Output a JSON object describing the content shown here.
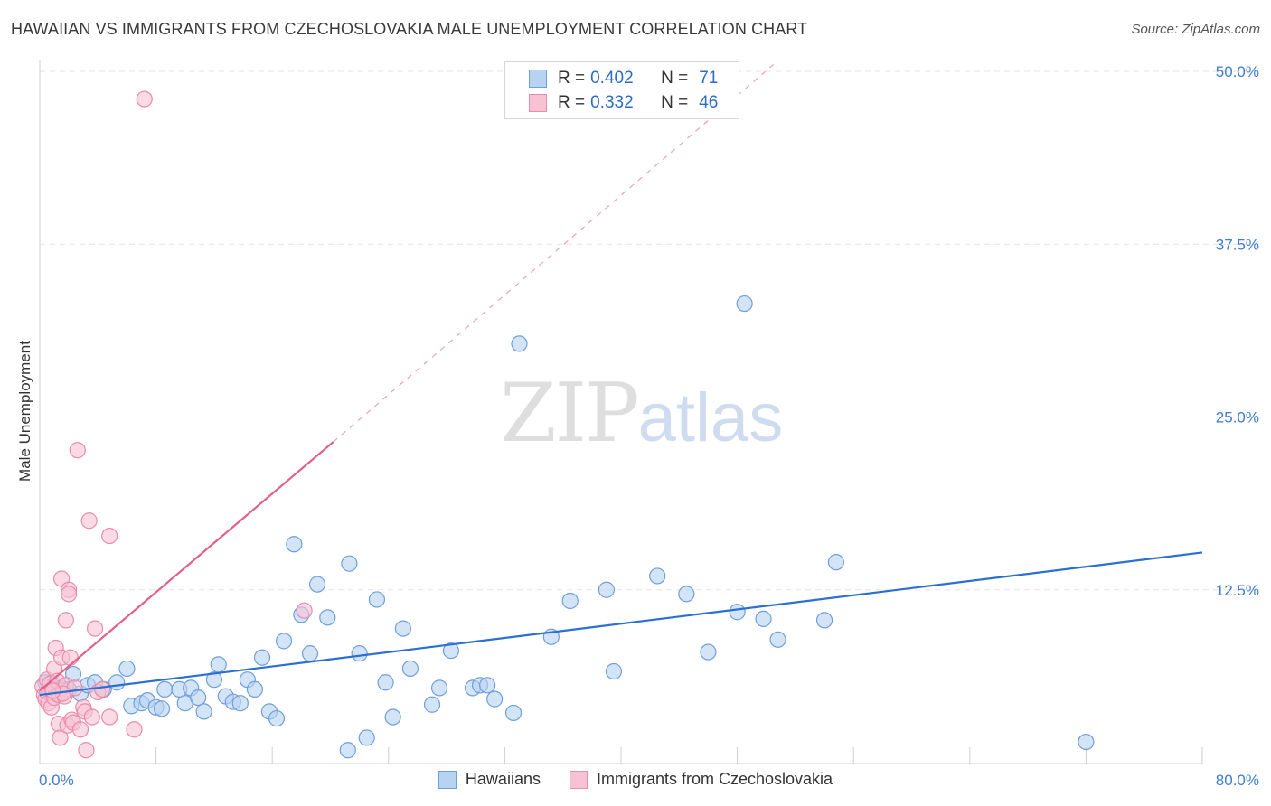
{
  "title": "HAWAIIAN VS IMMIGRANTS FROM CZECHOSLOVAKIA MALE UNEMPLOYMENT CORRELATION CHART",
  "source": "Source: ZipAtlas.com",
  "watermark": {
    "zip": "ZIP",
    "atlas": "atlas"
  },
  "legend": {
    "r_label": "R =",
    "n_label": "N =",
    "rows": [
      {
        "r": "0.402",
        "n": "71"
      },
      {
        "r": "0.332",
        "n": "46"
      }
    ]
  },
  "colors": {
    "blue_fill": "#b8d2f2",
    "blue_stroke": "#6f9fd8",
    "blue_line": "#2a6fd1",
    "pink_fill": "#f7c3d4",
    "pink_stroke": "#e98bab",
    "pink_line": "#e0608a",
    "axis_text": "#3f7bd0",
    "grid": "#e3e3e3"
  },
  "chart_data": {
    "type": "scatter",
    "title": "HAWAIIAN VS IMMIGRANTS FROM CZECHOSLOVAKIA MALE UNEMPLOYMENT CORRELATION CHART",
    "xlabel": "",
    "ylabel": "Male Unemployment",
    "xlim": [
      0,
      80
    ],
    "ylim": [
      0,
      50
    ],
    "x_tick_labels": [
      "0.0%",
      "80.0%"
    ],
    "y_ticks": [
      12.5,
      25.0,
      37.5,
      50.0
    ],
    "y_tick_labels": [
      "12.5%",
      "25.0%",
      "37.5%",
      "50.0%"
    ],
    "grid": true,
    "series": [
      {
        "name": "Hawaiians",
        "r": 0.402,
        "n": 71,
        "trend": {
          "x": [
            0,
            80
          ],
          "y": [
            4.9,
            15.2
          ]
        },
        "points": [
          [
            0.4,
            5.8
          ],
          [
            0.6,
            5.2
          ],
          [
            1.0,
            5.6
          ],
          [
            1.5,
            5.4
          ],
          [
            2.0,
            5.3
          ],
          [
            2.3,
            6.4
          ],
          [
            2.8,
            5.0
          ],
          [
            3.3,
            5.6
          ],
          [
            3.8,
            5.8
          ],
          [
            4.4,
            5.3
          ],
          [
            5.3,
            5.8
          ],
          [
            6.0,
            6.8
          ],
          [
            6.3,
            4.1
          ],
          [
            7.0,
            4.3
          ],
          [
            7.4,
            4.5
          ],
          [
            8.0,
            4.0
          ],
          [
            8.4,
            3.9
          ],
          [
            8.6,
            5.3
          ],
          [
            9.6,
            5.3
          ],
          [
            10.0,
            4.3
          ],
          [
            10.4,
            5.4
          ],
          [
            10.9,
            4.7
          ],
          [
            11.3,
            3.7
          ],
          [
            12.0,
            6.0
          ],
          [
            12.3,
            7.1
          ],
          [
            12.8,
            4.8
          ],
          [
            13.3,
            4.4
          ],
          [
            13.8,
            4.3
          ],
          [
            14.3,
            6.0
          ],
          [
            14.8,
            5.3
          ],
          [
            15.3,
            7.6
          ],
          [
            15.8,
            3.7
          ],
          [
            16.3,
            3.2
          ],
          [
            16.8,
            8.8
          ],
          [
            17.5,
            15.8
          ],
          [
            18.0,
            10.7
          ],
          [
            18.6,
            7.9
          ],
          [
            19.1,
            12.9
          ],
          [
            19.8,
            10.5
          ],
          [
            21.2,
            0.9
          ],
          [
            21.3,
            14.4
          ],
          [
            22.0,
            7.9
          ],
          [
            22.5,
            1.8
          ],
          [
            23.2,
            11.8
          ],
          [
            23.8,
            5.8
          ],
          [
            24.3,
            3.3
          ],
          [
            25.0,
            9.7
          ],
          [
            25.5,
            6.8
          ],
          [
            27.0,
            4.2
          ],
          [
            27.5,
            5.4
          ],
          [
            28.3,
            8.1
          ],
          [
            29.8,
            5.4
          ],
          [
            30.3,
            5.6
          ],
          [
            30.8,
            5.6
          ],
          [
            31.3,
            4.6
          ],
          [
            32.6,
            3.6
          ],
          [
            33.0,
            30.3
          ],
          [
            35.2,
            9.1
          ],
          [
            36.5,
            11.7
          ],
          [
            39.0,
            12.5
          ],
          [
            39.5,
            6.6
          ],
          [
            42.5,
            13.5
          ],
          [
            44.5,
            12.2
          ],
          [
            46.0,
            8.0
          ],
          [
            48.0,
            10.9
          ],
          [
            48.5,
            33.2
          ],
          [
            49.8,
            10.4
          ],
          [
            50.8,
            8.9
          ],
          [
            54.0,
            10.3
          ],
          [
            54.8,
            14.5
          ],
          [
            72.0,
            1.5
          ]
        ]
      },
      {
        "name": "Immigrants from Czechoslovakia",
        "r": 0.332,
        "n": 46,
        "trend": {
          "x": [
            0,
            20.2
          ],
          "y": [
            5.2,
            23.2
          ]
        },
        "trend_extension": {
          "x": [
            20.2,
            50.5
          ],
          "y": [
            23.2,
            50.5
          ]
        },
        "points": [
          [
            0.2,
            5.5
          ],
          [
            0.3,
            4.9
          ],
          [
            0.4,
            4.6
          ],
          [
            0.5,
            5.1
          ],
          [
            0.5,
            6.0
          ],
          [
            0.6,
            4.3
          ],
          [
            0.7,
            5.7
          ],
          [
            0.8,
            4.0
          ],
          [
            0.9,
            5.3
          ],
          [
            1.0,
            6.8
          ],
          [
            1.0,
            4.7
          ],
          [
            1.1,
            8.3
          ],
          [
            1.2,
            5.9
          ],
          [
            1.3,
            2.8
          ],
          [
            1.3,
            4.9
          ],
          [
            1.4,
            1.8
          ],
          [
            1.5,
            7.6
          ],
          [
            1.5,
            13.3
          ],
          [
            1.6,
            5.2
          ],
          [
            1.7,
            4.8
          ],
          [
            1.8,
            10.3
          ],
          [
            1.8,
            5.6
          ],
          [
            1.9,
            2.7
          ],
          [
            2.0,
            12.5
          ],
          [
            2.0,
            12.2
          ],
          [
            2.1,
            7.6
          ],
          [
            2.2,
            3.1
          ],
          [
            2.3,
            2.9
          ],
          [
            2.4,
            5.4
          ],
          [
            2.6,
            22.6
          ],
          [
            2.8,
            2.4
          ],
          [
            3.0,
            4.0
          ],
          [
            3.1,
            3.7
          ],
          [
            3.2,
            0.9
          ],
          [
            3.4,
            17.5
          ],
          [
            3.6,
            3.3
          ],
          [
            3.8,
            9.7
          ],
          [
            4.0,
            5.1
          ],
          [
            4.3,
            5.3
          ],
          [
            4.8,
            3.3
          ],
          [
            4.8,
            16.4
          ],
          [
            6.5,
            2.4
          ],
          [
            7.2,
            48.0
          ],
          [
            18.2,
            11.0
          ],
          [
            1.6,
            5.0
          ],
          [
            0.9,
            5.2
          ]
        ]
      }
    ]
  }
}
